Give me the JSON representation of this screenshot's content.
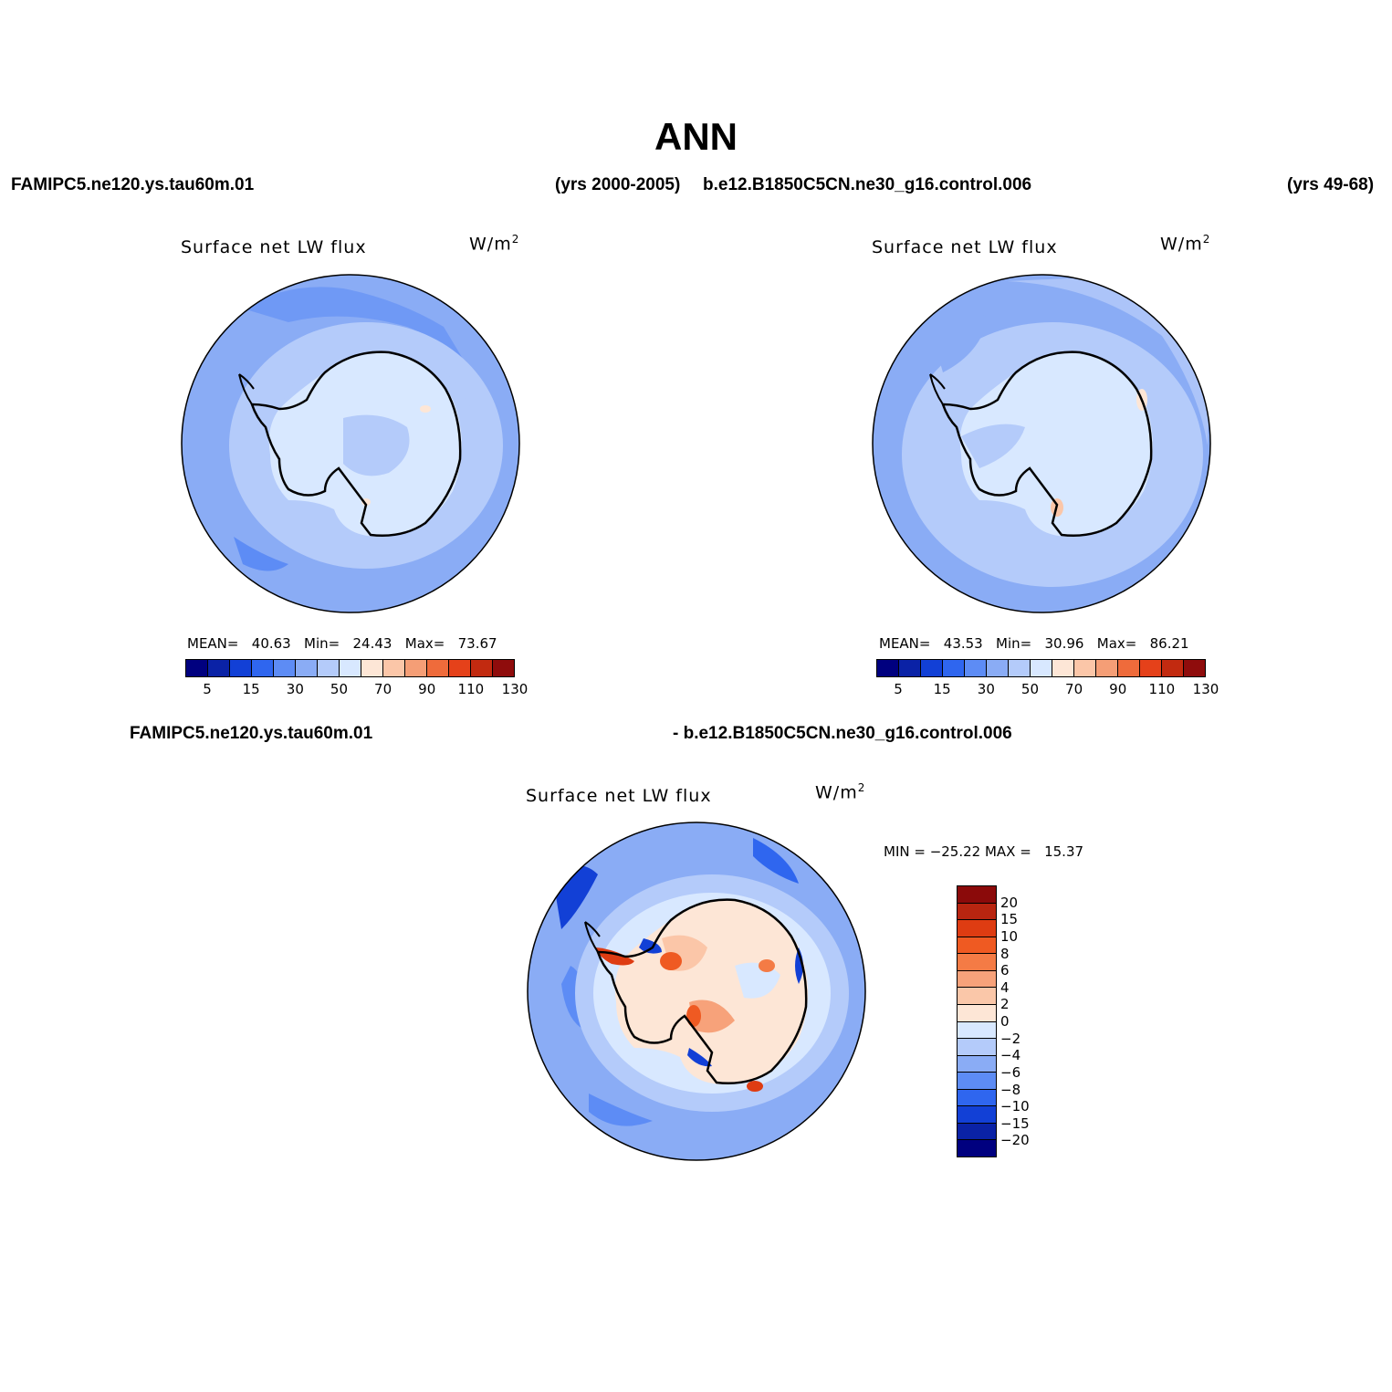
{
  "main_title": "ANN",
  "header": {
    "case1": "FAMIPC5.ne120.ys.tau60m.01",
    "case1_years": "(yrs 2000-2005)",
    "case2": "b.e12.B1850C5CN.ne30_g16.control.006",
    "case2_years": "(yrs 49-68)",
    "diff_case1": "FAMIPC5.ne120.ys.tau60m.01",
    "diff_case2": "- b.e12.B1850C5CN.ne30_g16.control.006"
  },
  "panels": [
    {
      "title": "Surface net LW flux",
      "units": "W/m",
      "units_sup": "2",
      "stats": "MEAN=   40.63   Min=   24.43   Max=   73.67",
      "colorbar_labels": [
        "5",
        "15",
        "30",
        "50",
        "70",
        "90",
        "110",
        "130"
      ]
    },
    {
      "title": "Surface net LW flux",
      "units": "W/m",
      "units_sup": "2",
      "stats": "MEAN=   43.53   Min=   30.96   Max=   86.21",
      "colorbar_labels": [
        "5",
        "15",
        "30",
        "50",
        "70",
        "90",
        "110",
        "130"
      ]
    },
    {
      "title": "Surface net LW flux",
      "units": "W/m",
      "units_sup": "2",
      "stats": "MIN = −25.22 MAX =   15.37",
      "colorbar_labels": [
        "20",
        "15",
        "10",
        "8",
        "6",
        "4",
        "2",
        "0",
        "−2",
        "−4",
        "−6",
        "−8",
        "−10",
        "−15",
        "−20"
      ]
    }
  ],
  "colors": {
    "abs_scale": [
      "#00007f",
      "#0a22a6",
      "#1240d6",
      "#2f66ef",
      "#5d8cf5",
      "#8aacf5",
      "#b4cbfa",
      "#d8e8ff",
      "#fde6d6",
      "#fbc6a8",
      "#f59e76",
      "#ef6b3b",
      "#e5411a",
      "#c22a10",
      "#8f0c0c"
    ],
    "diff_scale": [
      "#8b0a0a",
      "#b82510",
      "#de3c12",
      "#ef5a22",
      "#f47b45",
      "#f7a27a",
      "#fac7a9",
      "#fde6d6",
      "#d8e8ff",
      "#b4cbfa",
      "#8aacf5",
      "#5d8cf5",
      "#2f66ef",
      "#1240d6",
      "#0a22a6",
      "#00007f"
    ]
  }
}
